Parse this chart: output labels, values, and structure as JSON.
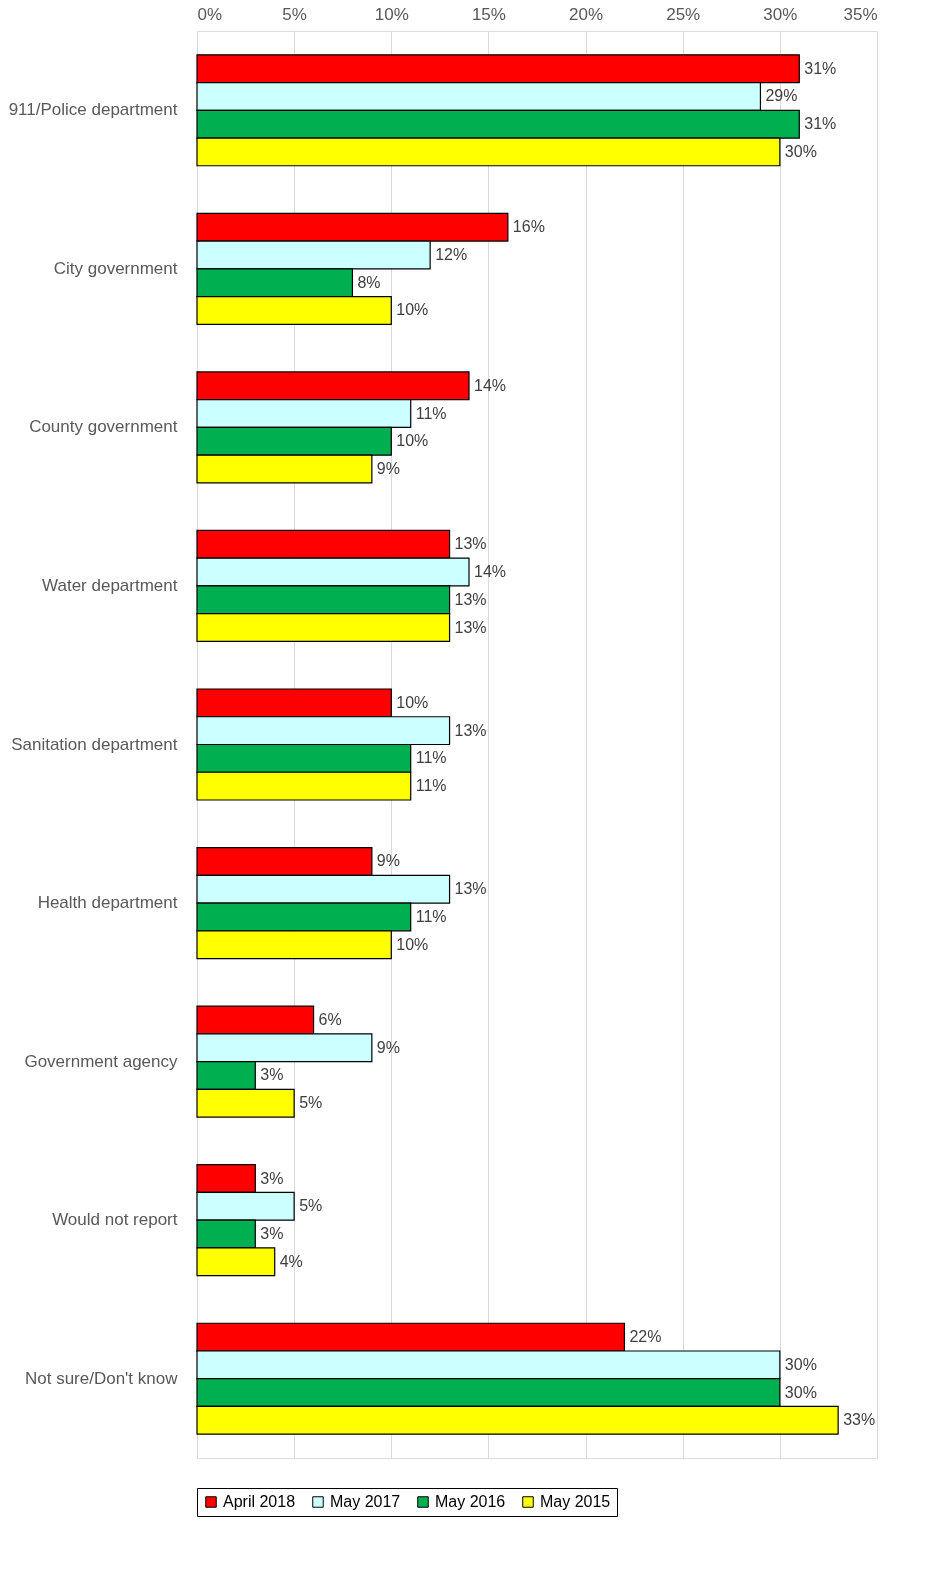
{
  "chart_data": {
    "type": "bar",
    "orientation": "horizontal",
    "categories": [
      "911/Police department",
      "City government",
      "County government",
      "Water department",
      "Sanitation department",
      "Health department",
      "Government agency",
      "Would not report",
      "Not sure/Don't know"
    ],
    "series": [
      {
        "name": "April 2018",
        "color": "#ff0000",
        "values": [
          31,
          16,
          14,
          13,
          10,
          9,
          6,
          3,
          22
        ],
        "value_labels": [
          "31%",
          "16%",
          "14%",
          "13%",
          "10%",
          "9%",
          "6%",
          "3%",
          "22%"
        ]
      },
      {
        "name": "May 2017",
        "color": "#ccffff",
        "values": [
          29,
          12,
          11,
          14,
          13,
          13,
          9,
          5,
          30
        ],
        "value_labels": [
          "29%",
          "12%",
          "11%",
          "14%",
          "13%",
          "13%",
          "9%",
          "5%",
          "30%"
        ]
      },
      {
        "name": "May 2016",
        "color": "#00b050",
        "values": [
          31,
          8,
          10,
          13,
          11,
          11,
          3,
          3,
          30
        ],
        "value_labels": [
          "31%",
          "8%",
          "10%",
          "13%",
          "11%",
          "11%",
          "3%",
          "3%",
          "30%"
        ]
      },
      {
        "name": "May 2015",
        "color": "#ffff00",
        "values": [
          30,
          10,
          9,
          13,
          11,
          10,
          5,
          4,
          33
        ],
        "value_labels": [
          "30%",
          "10%",
          "9%",
          "13%",
          "11%",
          "10%",
          "5%",
          "4%",
          "33%"
        ]
      }
    ],
    "xlim": [
      0,
      35
    ],
    "xticks": [
      {
        "value": 0,
        "label": "0%"
      },
      {
        "value": 5,
        "label": "5%"
      },
      {
        "value": 10,
        "label": "10%"
      },
      {
        "value": 15,
        "label": "15%"
      },
      {
        "value": 20,
        "label": "20%"
      },
      {
        "value": 25,
        "label": "25%"
      },
      {
        "value": 30,
        "label": "30%"
      },
      {
        "value": 35,
        "label": "35%"
      }
    ],
    "grid": "x",
    "legend": "bottom left"
  }
}
